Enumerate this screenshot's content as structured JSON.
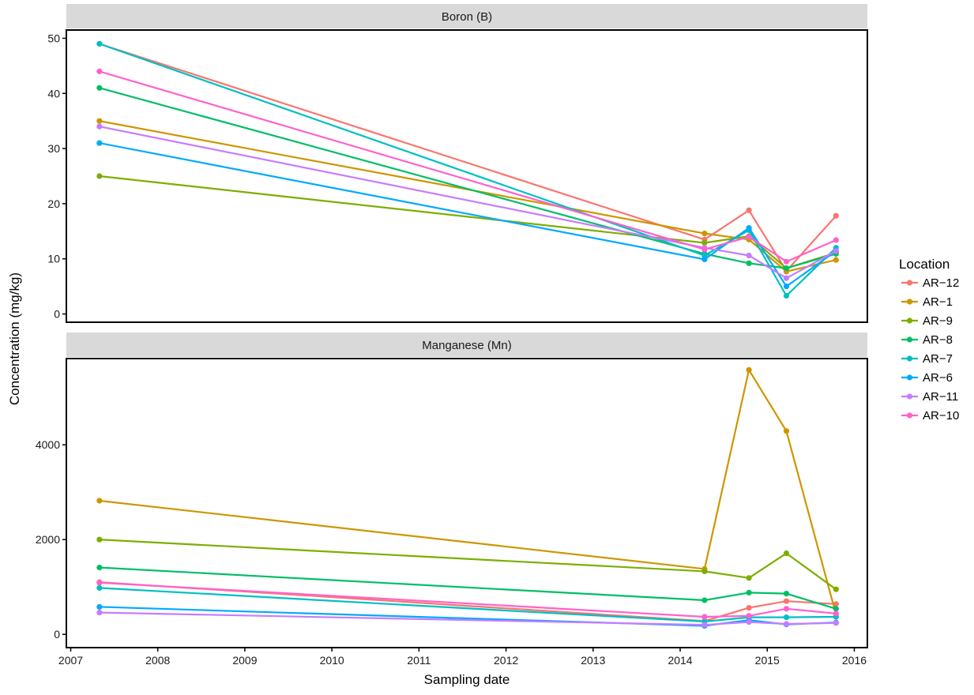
{
  "chart_data": {
    "type": "line",
    "xlabel": "Sampling date",
    "ylabel": "Concentration (mg/kg)",
    "legend_title": "Location",
    "legend_position": "right",
    "grid": false,
    "x_ticks": [
      "2007",
      "2008",
      "2009",
      "2010",
      "2011",
      "2012",
      "2013",
      "2014",
      "2015",
      "2016"
    ],
    "x_range": [
      2006.95,
      2016.15
    ],
    "dates": [
      "2007-05",
      "2014-04",
      "2014-10",
      "2015-03",
      "2015-10"
    ],
    "x": [
      2007.33,
      2014.28,
      2014.79,
      2015.22,
      2015.79
    ],
    "series_meta": [
      {
        "name": "AR−12",
        "color": "#F8766D"
      },
      {
        "name": "AR−1",
        "color": "#CD9600"
      },
      {
        "name": "AR−9",
        "color": "#7CAE00"
      },
      {
        "name": "AR−8",
        "color": "#00BE67"
      },
      {
        "name": "AR−7",
        "color": "#00BFC4"
      },
      {
        "name": "AR−6",
        "color": "#00A9FF"
      },
      {
        "name": "AR−11",
        "color": "#C77CFF"
      },
      {
        "name": "AR−10",
        "color": "#FF61CC"
      }
    ],
    "panels": [
      {
        "title": "Boron (B)",
        "ylim": [
          -1.5,
          51.5
        ],
        "y_ticks": [
          "0",
          "10",
          "20",
          "30",
          "40",
          "50"
        ],
        "series": [
          {
            "name": "AR−12",
            "values": [
              49,
              13.5,
              18.8,
              7.8,
              17.8
            ]
          },
          {
            "name": "AR−1",
            "values": [
              35,
              14.6,
              13.5,
              7.7,
              9.8
            ]
          },
          {
            "name": "AR−9",
            "values": [
              25,
              12.9,
              14.1,
              8.3,
              11.1
            ]
          },
          {
            "name": "AR−8",
            "values": [
              41,
              10.9,
              9.2,
              8.3,
              10.9
            ]
          },
          {
            "name": "AR−7",
            "values": [
              49,
              10.6,
              15.2,
              3.3,
              12.0
            ]
          },
          {
            "name": "AR−6",
            "values": [
              31,
              9.9,
              15.6,
              5.0,
              11.4
            ]
          },
          {
            "name": "AR−11",
            "values": [
              34,
              12.0,
              10.6,
              6.5,
              11.4
            ]
          },
          {
            "name": "AR−10",
            "values": [
              44,
              11.7,
              14.0,
              9.5,
              13.4
            ]
          }
        ]
      },
      {
        "title": "Manganese (Mn)",
        "ylim": [
          -280,
          5820
        ],
        "y_ticks": [
          "0",
          "2000",
          "4000"
        ],
        "series": [
          {
            "name": "AR−12",
            "values": [
              1100,
              280,
              560,
              700,
              640
            ]
          },
          {
            "name": "AR−1",
            "values": [
              2820,
              1380,
              5580,
              4290,
              420
            ]
          },
          {
            "name": "AR−9",
            "values": [
              2000,
              1330,
              1190,
              1710,
              950
            ]
          },
          {
            "name": "AR−8",
            "values": [
              1410,
              720,
              880,
              860,
              540
            ]
          },
          {
            "name": "AR−7",
            "values": [
              980,
              270,
              360,
              360,
              370
            ]
          },
          {
            "name": "AR−6",
            "values": [
              580,
              180,
              300,
              210,
              250
            ]
          },
          {
            "name": "AR−11",
            "values": [
              460,
              200,
              260,
              220,
              240
            ]
          },
          {
            "name": "AR−10",
            "values": [
              1090,
              370,
              390,
              540,
              440
            ]
          }
        ]
      }
    ]
  }
}
